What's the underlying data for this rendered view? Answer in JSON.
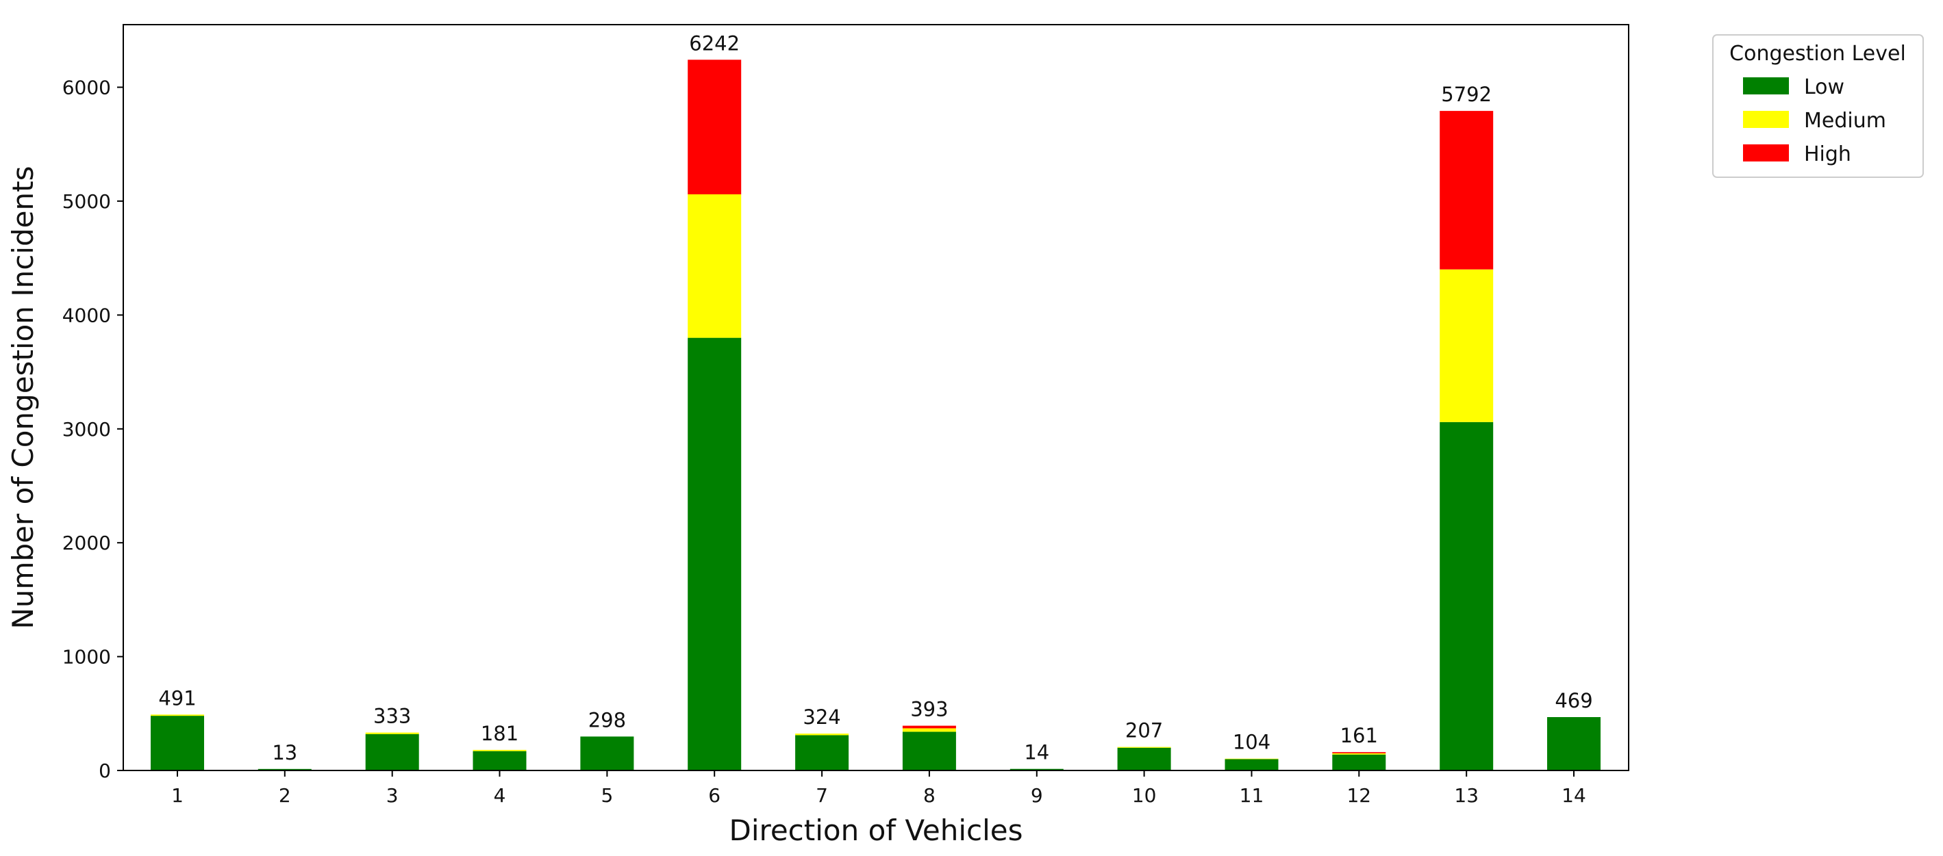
{
  "chart_data": {
    "type": "bar",
    "stacked": true,
    "title": "",
    "xlabel": "Direction of Vehicles",
    "ylabel": "Number of Congestion Incidents",
    "categories": [
      "1",
      "2",
      "3",
      "4",
      "5",
      "6",
      "7",
      "8",
      "9",
      "10",
      "11",
      "12",
      "13",
      "14"
    ],
    "series": [
      {
        "name": "Low",
        "color": "#008000",
        "values": [
          480,
          13,
          320,
          170,
          298,
          3800,
          310,
          340,
          14,
          200,
          100,
          140,
          3060,
          469
        ]
      },
      {
        "name": "Medium",
        "color": "#ffff00",
        "values": [
          11,
          0,
          13,
          11,
          0,
          1260,
          14,
          30,
          0,
          7,
          4,
          11,
          1340,
          0
        ]
      },
      {
        "name": "High",
        "color": "#ff0000",
        "values": [
          0,
          0,
          0,
          0,
          0,
          1182,
          0,
          23,
          0,
          0,
          0,
          10,
          1392,
          0
        ]
      }
    ],
    "totals": [
      491,
      13,
      333,
      181,
      298,
      6242,
      324,
      393,
      14,
      207,
      104,
      161,
      5792,
      469
    ],
    "ylim": [
      0,
      6550
    ],
    "yticks": [
      0,
      1000,
      2000,
      3000,
      4000,
      5000,
      6000
    ],
    "grid": false,
    "legend": {
      "title": "Congestion Level",
      "placement": "outside-upper-right"
    }
  }
}
